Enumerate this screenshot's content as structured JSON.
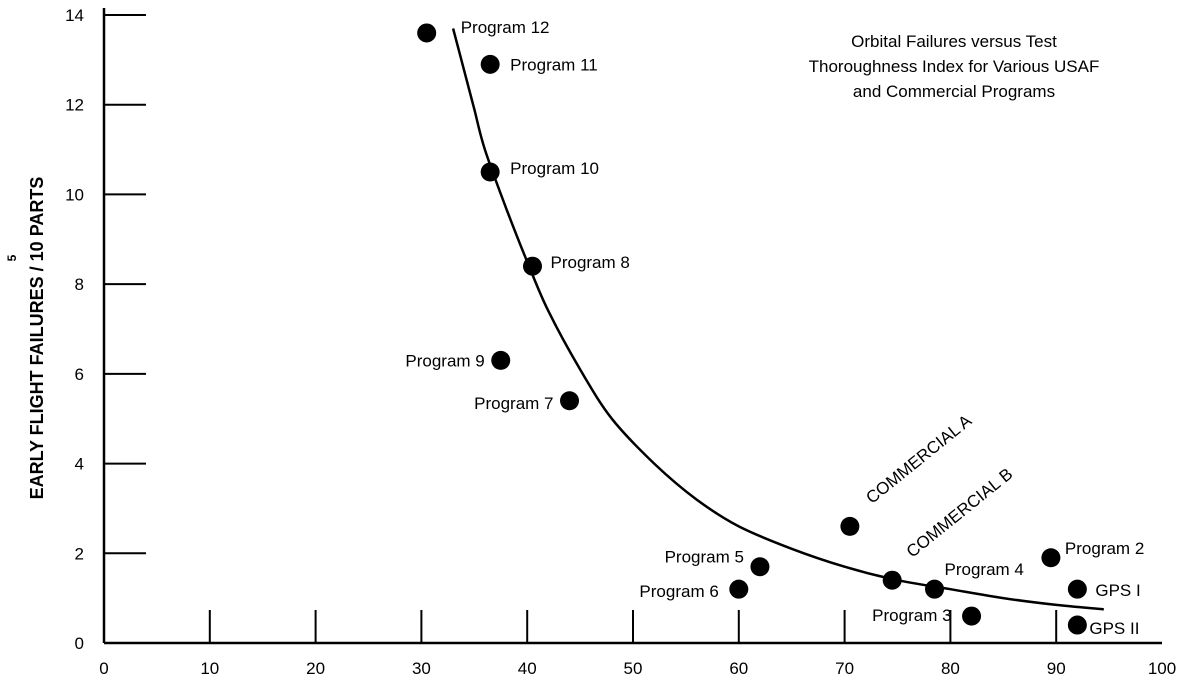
{
  "chart_data": {
    "type": "scatter",
    "title_lines": [
      "Orbital Failures versus Test",
      "Thoroughness Index for Various USAF",
      "and Commercial Programs"
    ],
    "ylabel": "EARLY FLIGHT FAILURES / 10  PARTS",
    "ylabel_superscript": "5",
    "xlim": [
      0,
      100
    ],
    "ylim": [
      0,
      14
    ],
    "x_ticks": [
      "0",
      "10",
      "20",
      "30",
      "40",
      "50",
      "60",
      "70",
      "80",
      "90",
      "100"
    ],
    "y_ticks": [
      "0",
      "2",
      "4",
      "6",
      "8",
      "10",
      "12",
      "14"
    ],
    "points": [
      {
        "label": "Program 12",
        "x": 30.5,
        "y": 13.6
      },
      {
        "label": "Program 11",
        "x": 36.5,
        "y": 12.9
      },
      {
        "label": "Program 10",
        "x": 36.5,
        "y": 10.5
      },
      {
        "label": "Program 8",
        "x": 40.5,
        "y": 8.4
      },
      {
        "label": "Program 9",
        "x": 37.5,
        "y": 6.3
      },
      {
        "label": "Program 7",
        "x": 44.0,
        "y": 5.4
      },
      {
        "label": "COMMERCIAL A",
        "x": 70.5,
        "y": 2.6
      },
      {
        "label": "COMMERCIAL B",
        "x": 74.5,
        "y": 1.4
      },
      {
        "label": "Program 5",
        "x": 62.0,
        "y": 1.7
      },
      {
        "label": "Program 6",
        "x": 60.0,
        "y": 1.2
      },
      {
        "label": "Program 4",
        "x": 78.5,
        "y": 1.2
      },
      {
        "label": "Program 3",
        "x": 82.0,
        "y": 0.6
      },
      {
        "label": "Program 2",
        "x": 89.5,
        "y": 1.9
      },
      {
        "label": "GPS I",
        "x": 92.0,
        "y": 1.2
      },
      {
        "label": "GPS II",
        "x": 92.0,
        "y": 0.4
      }
    ],
    "trend_curve": [
      {
        "x": 33.0,
        "y": 13.7
      },
      {
        "x": 34.0,
        "y": 12.8
      },
      {
        "x": 35.0,
        "y": 11.9
      },
      {
        "x": 36.0,
        "y": 11.0
      },
      {
        "x": 38.0,
        "y": 9.7
      },
      {
        "x": 40.0,
        "y": 8.5
      },
      {
        "x": 42.0,
        "y": 7.4
      },
      {
        "x": 45.0,
        "y": 6.1
      },
      {
        "x": 48.0,
        "y": 5.0
      },
      {
        "x": 52.0,
        "y": 4.0
      },
      {
        "x": 56.0,
        "y": 3.2
      },
      {
        "x": 60.0,
        "y": 2.6
      },
      {
        "x": 65.0,
        "y": 2.1
      },
      {
        "x": 70.0,
        "y": 1.7
      },
      {
        "x": 75.0,
        "y": 1.4
      },
      {
        "x": 80.0,
        "y": 1.2
      },
      {
        "x": 85.0,
        "y": 1.0
      },
      {
        "x": 90.0,
        "y": 0.85
      },
      {
        "x": 94.5,
        "y": 0.75
      }
    ],
    "grid": false
  }
}
